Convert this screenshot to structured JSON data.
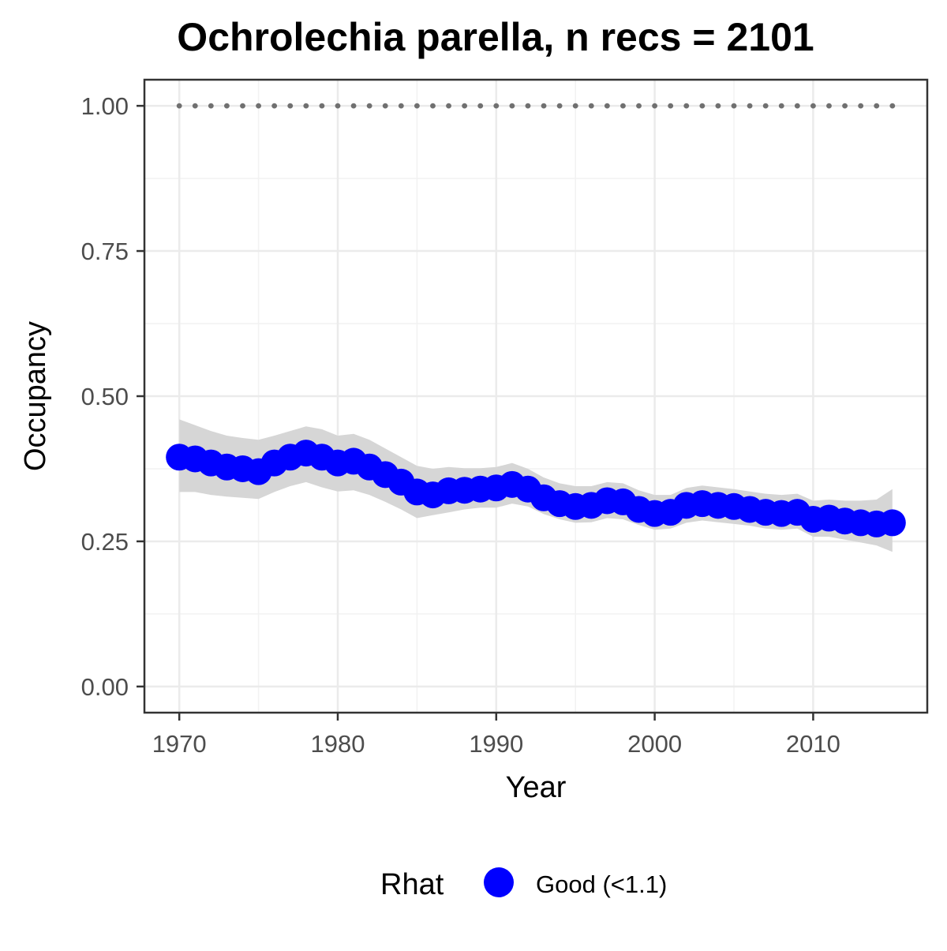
{
  "chart_data": {
    "type": "line",
    "title": "Ochrolechia parella, n recs = 2101",
    "xlabel": "Year",
    "ylabel": "Occupancy",
    "xlim": [
      1967.8,
      2017.2
    ],
    "ylim": [
      -0.045,
      1.045
    ],
    "x_ticks": [
      1970,
      1980,
      1990,
      2000,
      2010
    ],
    "y_ticks": [
      0.0,
      0.25,
      0.5,
      0.75,
      1.0
    ],
    "y_tick_labels": [
      "0.00",
      "0.25",
      "0.50",
      "0.75",
      "1.00"
    ],
    "grid": true,
    "x": [
      1970,
      1971,
      1972,
      1973,
      1974,
      1975,
      1976,
      1977,
      1978,
      1979,
      1980,
      1981,
      1982,
      1983,
      1984,
      1985,
      1986,
      1987,
      1988,
      1989,
      1990,
      1991,
      1992,
      1993,
      1994,
      1995,
      1996,
      1997,
      1998,
      1999,
      2000,
      2001,
      2002,
      2003,
      2004,
      2005,
      2006,
      2007,
      2008,
      2009,
      2010,
      2011,
      2012,
      2013,
      2014,
      2015
    ],
    "series": [
      {
        "name": "Good (<1.1)",
        "color": "#0000ff",
        "values": [
          0.395,
          0.392,
          0.385,
          0.378,
          0.375,
          0.37,
          0.385,
          0.395,
          0.402,
          0.395,
          0.385,
          0.388,
          0.378,
          0.365,
          0.352,
          0.335,
          0.33,
          0.337,
          0.338,
          0.34,
          0.342,
          0.348,
          0.34,
          0.325,
          0.315,
          0.31,
          0.312,
          0.32,
          0.318,
          0.305,
          0.298,
          0.3,
          0.312,
          0.315,
          0.312,
          0.31,
          0.305,
          0.3,
          0.298,
          0.3,
          0.288,
          0.29,
          0.285,
          0.282,
          0.28,
          0.282
        ],
        "lower": [
          0.335,
          0.335,
          0.33,
          0.327,
          0.325,
          0.323,
          0.335,
          0.345,
          0.352,
          0.343,
          0.336,
          0.338,
          0.33,
          0.318,
          0.305,
          0.29,
          0.295,
          0.3,
          0.305,
          0.308,
          0.308,
          0.315,
          0.31,
          0.297,
          0.288,
          0.282,
          0.283,
          0.29,
          0.288,
          0.278,
          0.27,
          0.272,
          0.282,
          0.286,
          0.283,
          0.28,
          0.277,
          0.272,
          0.27,
          0.272,
          0.258,
          0.258,
          0.253,
          0.248,
          0.243,
          0.232
        ],
        "upper": [
          0.46,
          0.45,
          0.44,
          0.432,
          0.428,
          0.425,
          0.432,
          0.44,
          0.448,
          0.443,
          0.432,
          0.435,
          0.425,
          0.41,
          0.395,
          0.38,
          0.375,
          0.378,
          0.376,
          0.376,
          0.378,
          0.385,
          0.375,
          0.36,
          0.35,
          0.345,
          0.345,
          0.352,
          0.35,
          0.338,
          0.33,
          0.33,
          0.342,
          0.346,
          0.343,
          0.34,
          0.336,
          0.332,
          0.33,
          0.332,
          0.32,
          0.322,
          0.32,
          0.32,
          0.322,
          0.34
        ]
      }
    ],
    "reference_line": {
      "y": 1.0,
      "style": "dotted",
      "color": "#707070"
    },
    "band_color": "#d6d6d6",
    "legend": {
      "title": "Rhat",
      "position": "bottom",
      "entries": [
        "Good (<1.1)"
      ]
    }
  }
}
